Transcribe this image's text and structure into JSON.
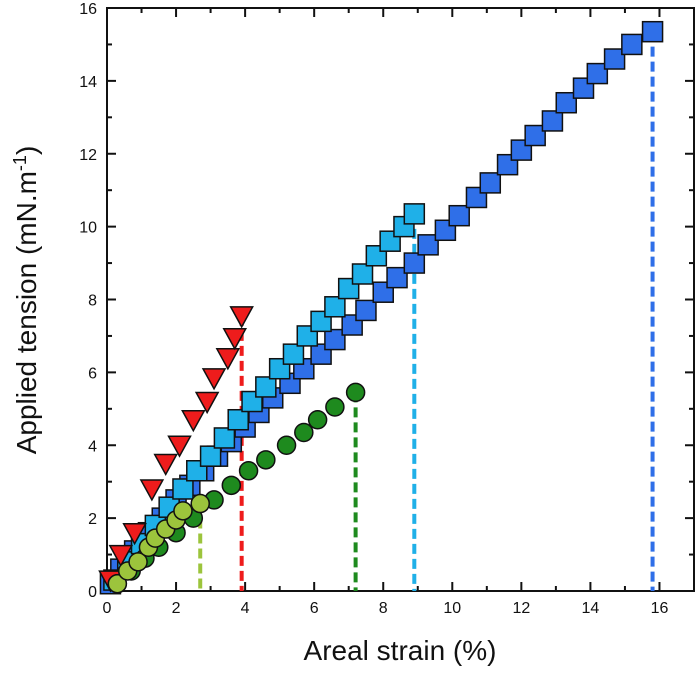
{
  "chart_data": {
    "type": "scatter",
    "x_label": "Areal strain (%)",
    "y_label": {
      "main": "Applied tension (mN.m",
      "sup": "-1",
      "end": ")"
    },
    "xlim": [
      0,
      17
    ],
    "ylim": [
      0,
      16
    ],
    "xticks": [
      0,
      2,
      4,
      6,
      8,
      10,
      12,
      14,
      16
    ],
    "yticks": [
      0,
      2,
      4,
      6,
      8,
      10,
      12,
      14,
      16
    ],
    "xminorticks": [
      1,
      3,
      5,
      7,
      9,
      11,
      13,
      15,
      17
    ],
    "yminorticks": [
      1,
      3,
      5,
      7,
      9,
      11,
      13,
      15
    ],
    "series": [
      {
        "marker": "square",
        "color": "#2f6fe8",
        "x": [
          0.1,
          0.4,
          0.8,
          1.2,
          1.6,
          2.0,
          2.4,
          2.8,
          3.2,
          3.6,
          4.0,
          4.4,
          4.8,
          5.3,
          5.7,
          6.2,
          6.6,
          7.1,
          7.5,
          8.0,
          8.4,
          8.9,
          9.3,
          9.8,
          10.2,
          10.7,
          11.1,
          11.6,
          12.0,
          12.4,
          12.9,
          13.3,
          13.8,
          14.2,
          14.7,
          15.2,
          15.8
        ],
        "values": [
          0.2,
          0.6,
          1.1,
          1.6,
          2.0,
          2.5,
          2.9,
          3.3,
          3.7,
          4.1,
          4.5,
          4.9,
          5.3,
          5.7,
          6.1,
          6.5,
          6.9,
          7.3,
          7.7,
          8.2,
          8.6,
          9.0,
          9.5,
          9.9,
          10.3,
          10.8,
          11.2,
          11.7,
          12.1,
          12.5,
          12.9,
          13.4,
          13.8,
          14.2,
          14.6,
          15.0,
          15.35
        ]
      },
      {
        "marker": "square",
        "color": "#1fb0e8",
        "x": [
          0.2,
          0.6,
          1.0,
          1.4,
          1.8,
          2.2,
          2.6,
          3.0,
          3.4,
          3.8,
          4.2,
          4.6,
          5.0,
          5.4,
          5.8,
          6.2,
          6.6,
          7.0,
          7.4,
          7.8,
          8.2,
          8.6,
          8.9
        ],
        "values": [
          0.3,
          0.8,
          1.3,
          1.8,
          2.3,
          2.8,
          3.3,
          3.7,
          4.2,
          4.7,
          5.2,
          5.6,
          6.1,
          6.5,
          7.0,
          7.4,
          7.8,
          8.3,
          8.7,
          9.2,
          9.6,
          10.0,
          10.35
        ]
      },
      {
        "marker": "triangle-down",
        "color": "#ee1c1c",
        "x": [
          0.1,
          0.4,
          0.8,
          1.3,
          1.7,
          2.1,
          2.5,
          2.9,
          3.1,
          3.5,
          3.7,
          3.9
        ],
        "values": [
          0.3,
          1.0,
          1.6,
          2.8,
          3.5,
          4.0,
          4.7,
          5.2,
          5.85,
          6.4,
          6.95,
          7.55
        ]
      },
      {
        "marker": "circle",
        "color": "#1e8a1e",
        "x": [
          0.3,
          0.7,
          1.1,
          1.5,
          2.0,
          2.5,
          3.1,
          3.6,
          4.1,
          4.6,
          5.2,
          5.7,
          6.1,
          6.6,
          7.2
        ],
        "values": [
          0.2,
          0.55,
          0.9,
          1.2,
          1.6,
          2.0,
          2.5,
          2.9,
          3.3,
          3.6,
          4.0,
          4.35,
          4.7,
          5.05,
          5.45
        ]
      },
      {
        "marker": "circle",
        "color": "#9cc43c",
        "x": [
          0.3,
          0.6,
          0.9,
          1.2,
          1.4,
          1.7,
          2.0,
          2.2,
          2.7
        ],
        "values": [
          0.2,
          0.55,
          0.8,
          1.2,
          1.45,
          1.7,
          1.95,
          2.2,
          2.4
        ]
      }
    ]
  }
}
